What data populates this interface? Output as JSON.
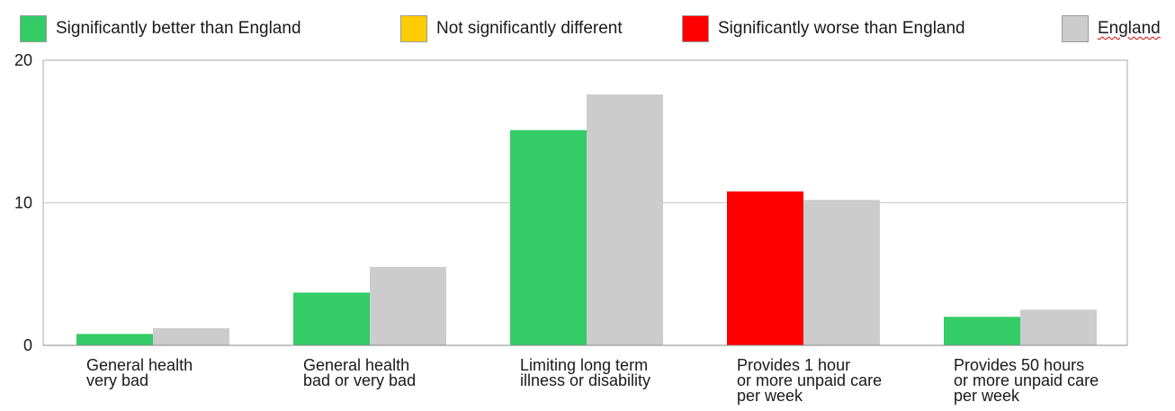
{
  "chart_data": {
    "type": "bar",
    "legend": [
      {
        "label": "Significantly better than England",
        "color": "#33cc66"
      },
      {
        "label": "Not significantly different",
        "color": "#ffcc00"
      },
      {
        "label": "Significantly worse than England",
        "color": "#ff0000"
      },
      {
        "label": "England",
        "color": "#cccccc"
      }
    ],
    "categories": [
      "General health\nvery bad",
      "General health\nbad or very bad",
      "Limiting long term\nillness or disability",
      "Provides 1 hour\nor more unpaid care\nper week",
      "Provides 50 hours\nor more unpaid care\nper week"
    ],
    "series": [
      {
        "values": [
          0.8,
          3.7,
          15.1,
          10.8,
          2.0
        ],
        "colors": [
          "#33cc66",
          "#33cc66",
          "#33cc66",
          "#ff0000",
          "#33cc66"
        ]
      },
      {
        "name": "England",
        "values": [
          1.2,
          5.5,
          17.6,
          10.2,
          2.5
        ],
        "color": "#cccccc"
      }
    ],
    "yticks": [
      "0",
      "10",
      "20"
    ],
    "ylim": [
      0,
      20
    ],
    "grid": true,
    "legend_position": "top"
  }
}
